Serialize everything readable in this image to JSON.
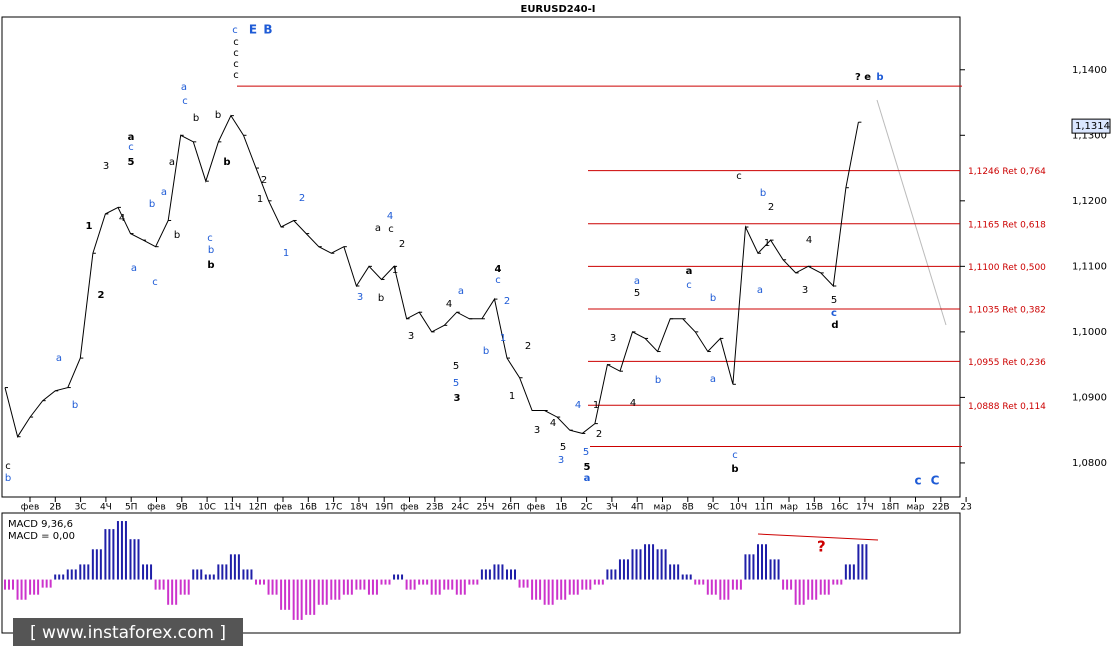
{
  "chart_data": [
    {
      "type": "line",
      "title": "EURUSD240-I",
      "color": "#000000",
      "values": [
        1.0915,
        1.084,
        1.087,
        1.0895,
        1.091,
        1.0915,
        1.096,
        1.112,
        1.118,
        1.119,
        1.115,
        1.114,
        1.113,
        1.117,
        1.13,
        1.129,
        1.123,
        1.129,
        1.133,
        1.13,
        1.125,
        1.12,
        1.116,
        1.117,
        1.115,
        1.113,
        1.112,
        1.113,
        1.107,
        1.11,
        1.108,
        1.11,
        1.102,
        1.103,
        1.1,
        1.101,
        1.103,
        1.102,
        1.102,
        1.105,
        1.096,
        1.093,
        1.088,
        1.088,
        1.087,
        1.085,
        1.0845,
        1.086,
        1.095,
        1.094,
        1.1,
        1.099,
        1.097,
        1.102,
        1.102,
        1.1,
        1.097,
        1.099,
        1.092,
        1.116,
        1.112,
        1.114,
        1.111,
        1.109,
        1.11,
        1.109,
        1.107,
        1.122,
        1.132
      ],
      "last_price": {
        "value": 1.1314,
        "label": "1,1314"
      },
      "ylim": [
        1.0748,
        1.1479
      ],
      "yticks": [
        {
          "value": 1.14,
          "label": "1,1400"
        },
        {
          "value": 1.13,
          "label": "1,1300"
        },
        {
          "value": 1.12,
          "label": "1,1200"
        },
        {
          "value": 1.11,
          "label": "1,1100"
        },
        {
          "value": 1.1,
          "label": "1,1000"
        },
        {
          "value": 1.09,
          "label": "1,0900"
        },
        {
          "value": 1.08,
          "label": "1,0800"
        }
      ],
      "xtick_labels": [
        "фев",
        "2В",
        "3С",
        "4Ч",
        "5П",
        "фев",
        "9В",
        "10С",
        "11Ч",
        "12П",
        "фев",
        "16В",
        "17С",
        "18Ч",
        "19П",
        "фев",
        "23В",
        "24С",
        "25Ч",
        "26П",
        "фев",
        "1В",
        "2С",
        "3Ч",
        "4П",
        "мар",
        "8В",
        "9С",
        "10Ч",
        "11П",
        "мар",
        "15В",
        "16С",
        "17Ч",
        "18П",
        "мар",
        "22В",
        "23"
      ],
      "levels": [
        {
          "value": 1.1246,
          "label": "1,1246 Ret 0,764"
        },
        {
          "value": 1.1165,
          "label": "1,1165 Ret 0,618"
        },
        {
          "value": 1.11,
          "label": "1,1100 Ret 0,500"
        },
        {
          "value": 1.1035,
          "label": "1,1035 Ret 0,382"
        },
        {
          "value": 1.0955,
          "label": "1,0955 Ret 0,236"
        },
        {
          "value": 1.0888,
          "label": "1,0888 Ret 0,114"
        }
      ],
      "lines": [
        1.1375,
        1.0825
      ],
      "level_color": "#cc0000",
      "annotations": [
        "c",
        "b",
        "a",
        "b",
        "1",
        "2",
        "3",
        "4",
        "5",
        "c",
        "a",
        "a",
        "c",
        "b",
        "a",
        "b",
        "a",
        "c",
        "a",
        "b",
        "b",
        "c",
        "b",
        "b",
        "c",
        "c",
        "c",
        "c",
        "c",
        "E",
        "B",
        "b",
        "2",
        "1",
        "2",
        "1",
        "4",
        "a",
        "c",
        "2",
        "1",
        "3",
        "b",
        "3",
        "4",
        "a",
        "5",
        "5",
        "3",
        "4",
        "c",
        "2",
        "1",
        "b",
        "2",
        "1",
        "4",
        "4",
        "1",
        "3",
        "5",
        "3",
        "2",
        "5",
        "5",
        "a",
        "3",
        "a",
        "5",
        "4",
        "b",
        "a",
        "c",
        "b",
        "a",
        "c",
        "b",
        "c",
        "b",
        "2",
        "1",
        "a",
        "3",
        "4",
        "5",
        "c",
        "d",
        "? e",
        "b",
        "c",
        "C"
      ]
    },
    {
      "type": "bar",
      "title": "MACD 9,36,6",
      "subtitle": "MACD = 0,00",
      "values": [
        -0.001,
        -0.002,
        -0.0015,
        -0.0008,
        0.0005,
        0.001,
        0.0015,
        0.003,
        0.005,
        0.0058,
        0.004,
        0.0015,
        -0.001,
        -0.0025,
        -0.0015,
        0.001,
        0.0005,
        0.0015,
        0.0025,
        0.001,
        -0.0005,
        -0.0015,
        -0.003,
        -0.004,
        -0.0035,
        -0.0025,
        -0.002,
        -0.0015,
        -0.001,
        -0.0015,
        -0.0005,
        0.0005,
        -0.001,
        -0.0005,
        -0.0015,
        -0.001,
        -0.0015,
        -0.0005,
        0.001,
        0.0015,
        0.001,
        -0.0008,
        -0.002,
        -0.0025,
        -0.002,
        -0.0015,
        -0.001,
        -0.0005,
        0.001,
        0.002,
        0.003,
        0.0035,
        0.003,
        0.0015,
        0.0005,
        -0.0005,
        -0.0015,
        -0.002,
        -0.001,
        0.0025,
        0.0035,
        0.002,
        -0.001,
        -0.0025,
        -0.002,
        -0.0015,
        -0.0005,
        0.0015,
        0.0035
      ],
      "ylim": [
        -0.005,
        0.0062
      ],
      "positive_color": "#1f1fa8",
      "negative_color": "#cc33cc",
      "annotations": [
        "?"
      ]
    }
  ],
  "watermark": "[ www.instaforex.com ]"
}
